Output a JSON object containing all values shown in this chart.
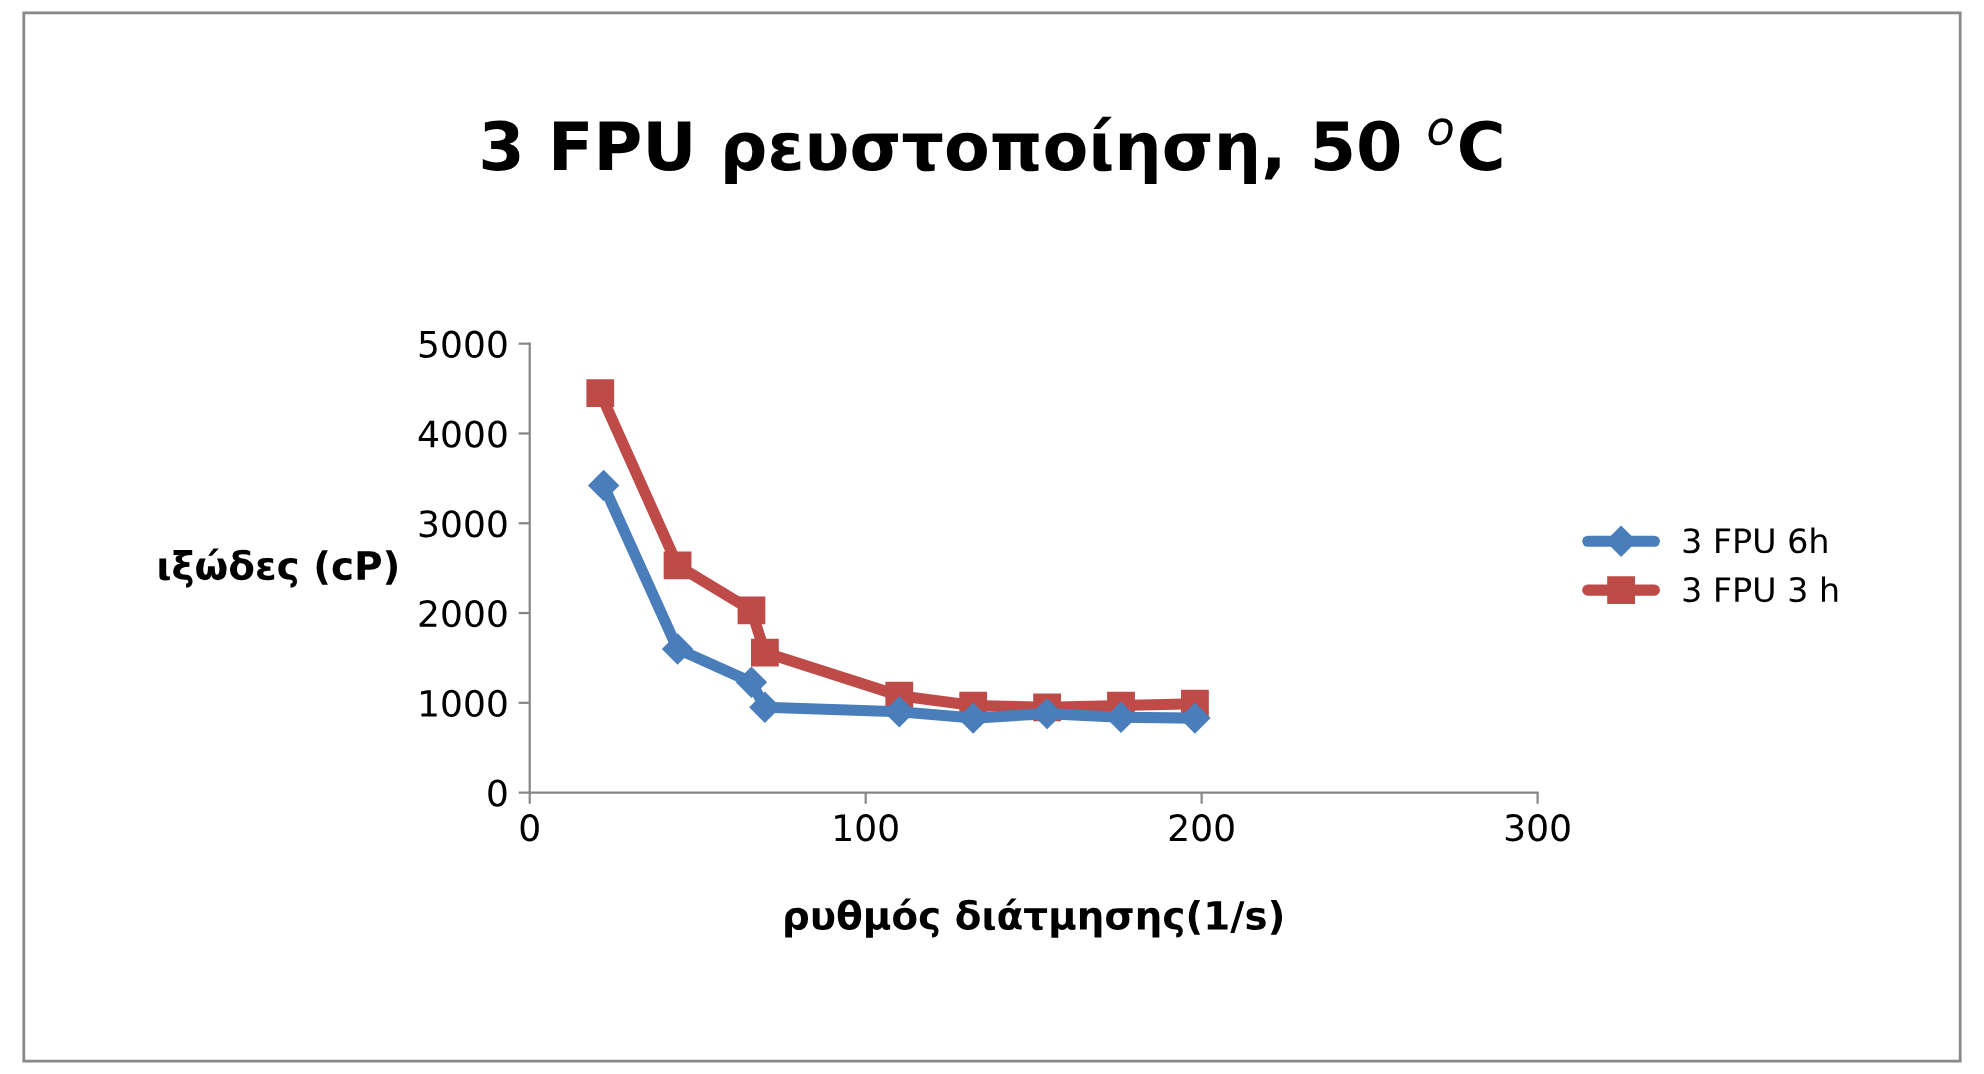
{
  "chart_data": {
    "type": "line",
    "title": "3 FPU ρευστοποίηση, 50 $^{o}$C",
    "xlabel": "ρυθμός διάτμησης(1/s)",
    "ylabel": "ιξώδες (cP)",
    "series": [
      {
        "name": "3 FPU 6h",
        "color": "#4a7ebb",
        "marker": "diamond",
        "x": [
          22,
          44,
          66,
          70,
          110,
          132,
          154,
          176,
          198
        ],
        "values": [
          3420,
          1600,
          1230,
          950,
          900,
          830,
          880,
          840,
          830
        ]
      },
      {
        "name": "3 FPU 3 h",
        "color": "#be4b48",
        "marker": "square",
        "x": [
          21,
          44,
          66,
          70,
          110,
          132,
          154,
          176,
          198
        ],
        "values": [
          4450,
          2530,
          2030,
          1560,
          1080,
          970,
          950,
          970,
          990
        ]
      }
    ],
    "xlim": [
      0,
      300
    ],
    "xticks": [
      0,
      100,
      200,
      300
    ],
    "ylim": [
      0,
      5000
    ],
    "yticks": [
      0,
      1000,
      2000,
      3000,
      4000,
      5000
    ],
    "grid": false,
    "legend": "right",
    "line_style": "solid"
  }
}
